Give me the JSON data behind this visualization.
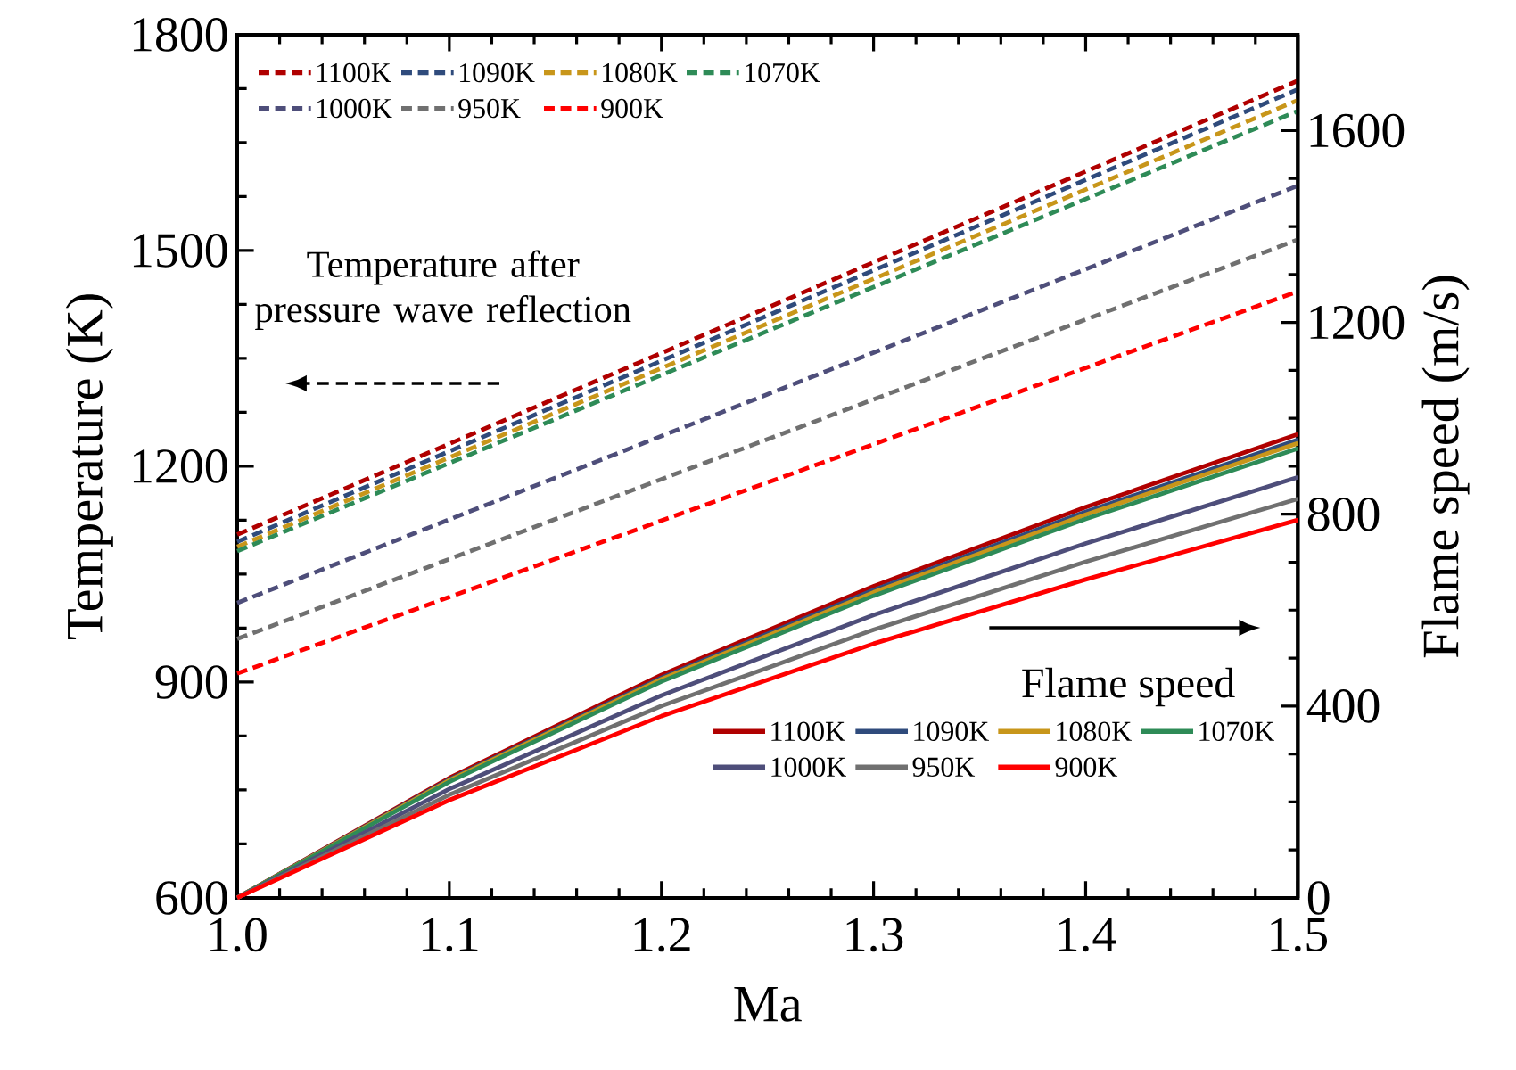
{
  "chart_data": {
    "type": "line",
    "xlabel": "Ma",
    "ylabel": "Temperature (K)",
    "y2label": "Flame speed (m/s)",
    "xlim": [
      1.0,
      1.5
    ],
    "xticks": [
      {
        "value": 1.0,
        "label": "1.0"
      },
      1.1,
      1.2,
      1.3,
      1.4,
      {
        "value": 1.5,
        "label": "1.5"
      }
    ],
    "ylim": [
      600,
      1800
    ],
    "yticks": [
      600,
      900,
      1200,
      1500,
      1800
    ],
    "y2lim": [
      0,
      1800
    ],
    "y2ticks": [
      0,
      400,
      800,
      1200,
      1600
    ],
    "x": [
      1.0,
      1.5
    ],
    "legend": "top left",
    "marker": "none",
    "grid": false,
    "annotations": [
      "Temperature after pressure wave reflection",
      "Flame speed"
    ],
    "series": [
      {
        "name": "1100K",
        "color": "#b00000",
        "line_style": "dashed",
        "values": [
          1105,
          1736
        ]
      },
      {
        "name": "1090K",
        "color": "#2f4b7c",
        "line_style": "dashed",
        "values": [
          1095,
          1724
        ]
      },
      {
        "name": "1080K",
        "color": "#c8961a",
        "line_style": "dashed",
        "values": [
          1088,
          1709
        ]
      },
      {
        "name": "1070K",
        "color": "#2e8b57",
        "line_style": "dashed",
        "values": [
          1082,
          1694
        ]
      },
      {
        "name": "1000K",
        "color": "#4e4e7a",
        "line_style": "dashed",
        "values": [
          1010,
          1590
        ]
      },
      {
        "name": "950K",
        "color": "#707070",
        "line_style": "dashed",
        "values": [
          960,
          1515
        ]
      },
      {
        "name": "900K",
        "color": "#ff0000",
        "line_style": "dashed",
        "values": [
          912,
          1443
        ]
      },
      {
        "name": "1100K",
        "color": "#b00000",
        "line_style": "solid",
        "axis": "y2",
        "x": [
          1.0,
          1.1,
          1.2,
          1.3,
          1.4,
          1.5
        ],
        "values": [
          0,
          250,
          465,
          650,
          815,
          967
        ]
      },
      {
        "name": "1090K",
        "color": "#2f4b7c",
        "line_style": "solid",
        "axis": "y2",
        "x": [
          1.0,
          1.1,
          1.2,
          1.3,
          1.4,
          1.5
        ],
        "values": [
          0,
          247,
          459,
          642,
          805,
          955
        ]
      },
      {
        "name": "1080K",
        "color": "#c8961a",
        "line_style": "solid",
        "axis": "y2",
        "x": [
          1.0,
          1.1,
          1.2,
          1.3,
          1.4,
          1.5
        ],
        "values": [
          0,
          245,
          456,
          637,
          799,
          948
        ]
      },
      {
        "name": "1070K",
        "color": "#2e8b57",
        "line_style": "solid",
        "axis": "y2",
        "x": [
          1.0,
          1.1,
          1.2,
          1.3,
          1.4,
          1.5
        ],
        "values": [
          0,
          242,
          451,
          630,
          790,
          937
        ]
      },
      {
        "name": "1000K",
        "color": "#4e4e7a",
        "line_style": "solid",
        "axis": "y2",
        "x": [
          1.0,
          1.1,
          1.2,
          1.3,
          1.4,
          1.5
        ],
        "values": [
          0,
          227,
          422,
          590,
          739,
          877
        ]
      },
      {
        "name": "950K",
        "color": "#707070",
        "line_style": "solid",
        "axis": "y2",
        "x": [
          1.0,
          1.1,
          1.2,
          1.3,
          1.4,
          1.5
        ],
        "values": [
          0,
          215,
          400,
          559,
          701,
          832
        ]
      },
      {
        "name": "900K",
        "color": "#ff0000",
        "line_style": "solid",
        "axis": "y2",
        "x": [
          1.0,
          1.1,
          1.2,
          1.3,
          1.4,
          1.5
        ],
        "values": [
          0,
          204,
          379,
          530,
          664,
          788
        ]
      }
    ]
  }
}
